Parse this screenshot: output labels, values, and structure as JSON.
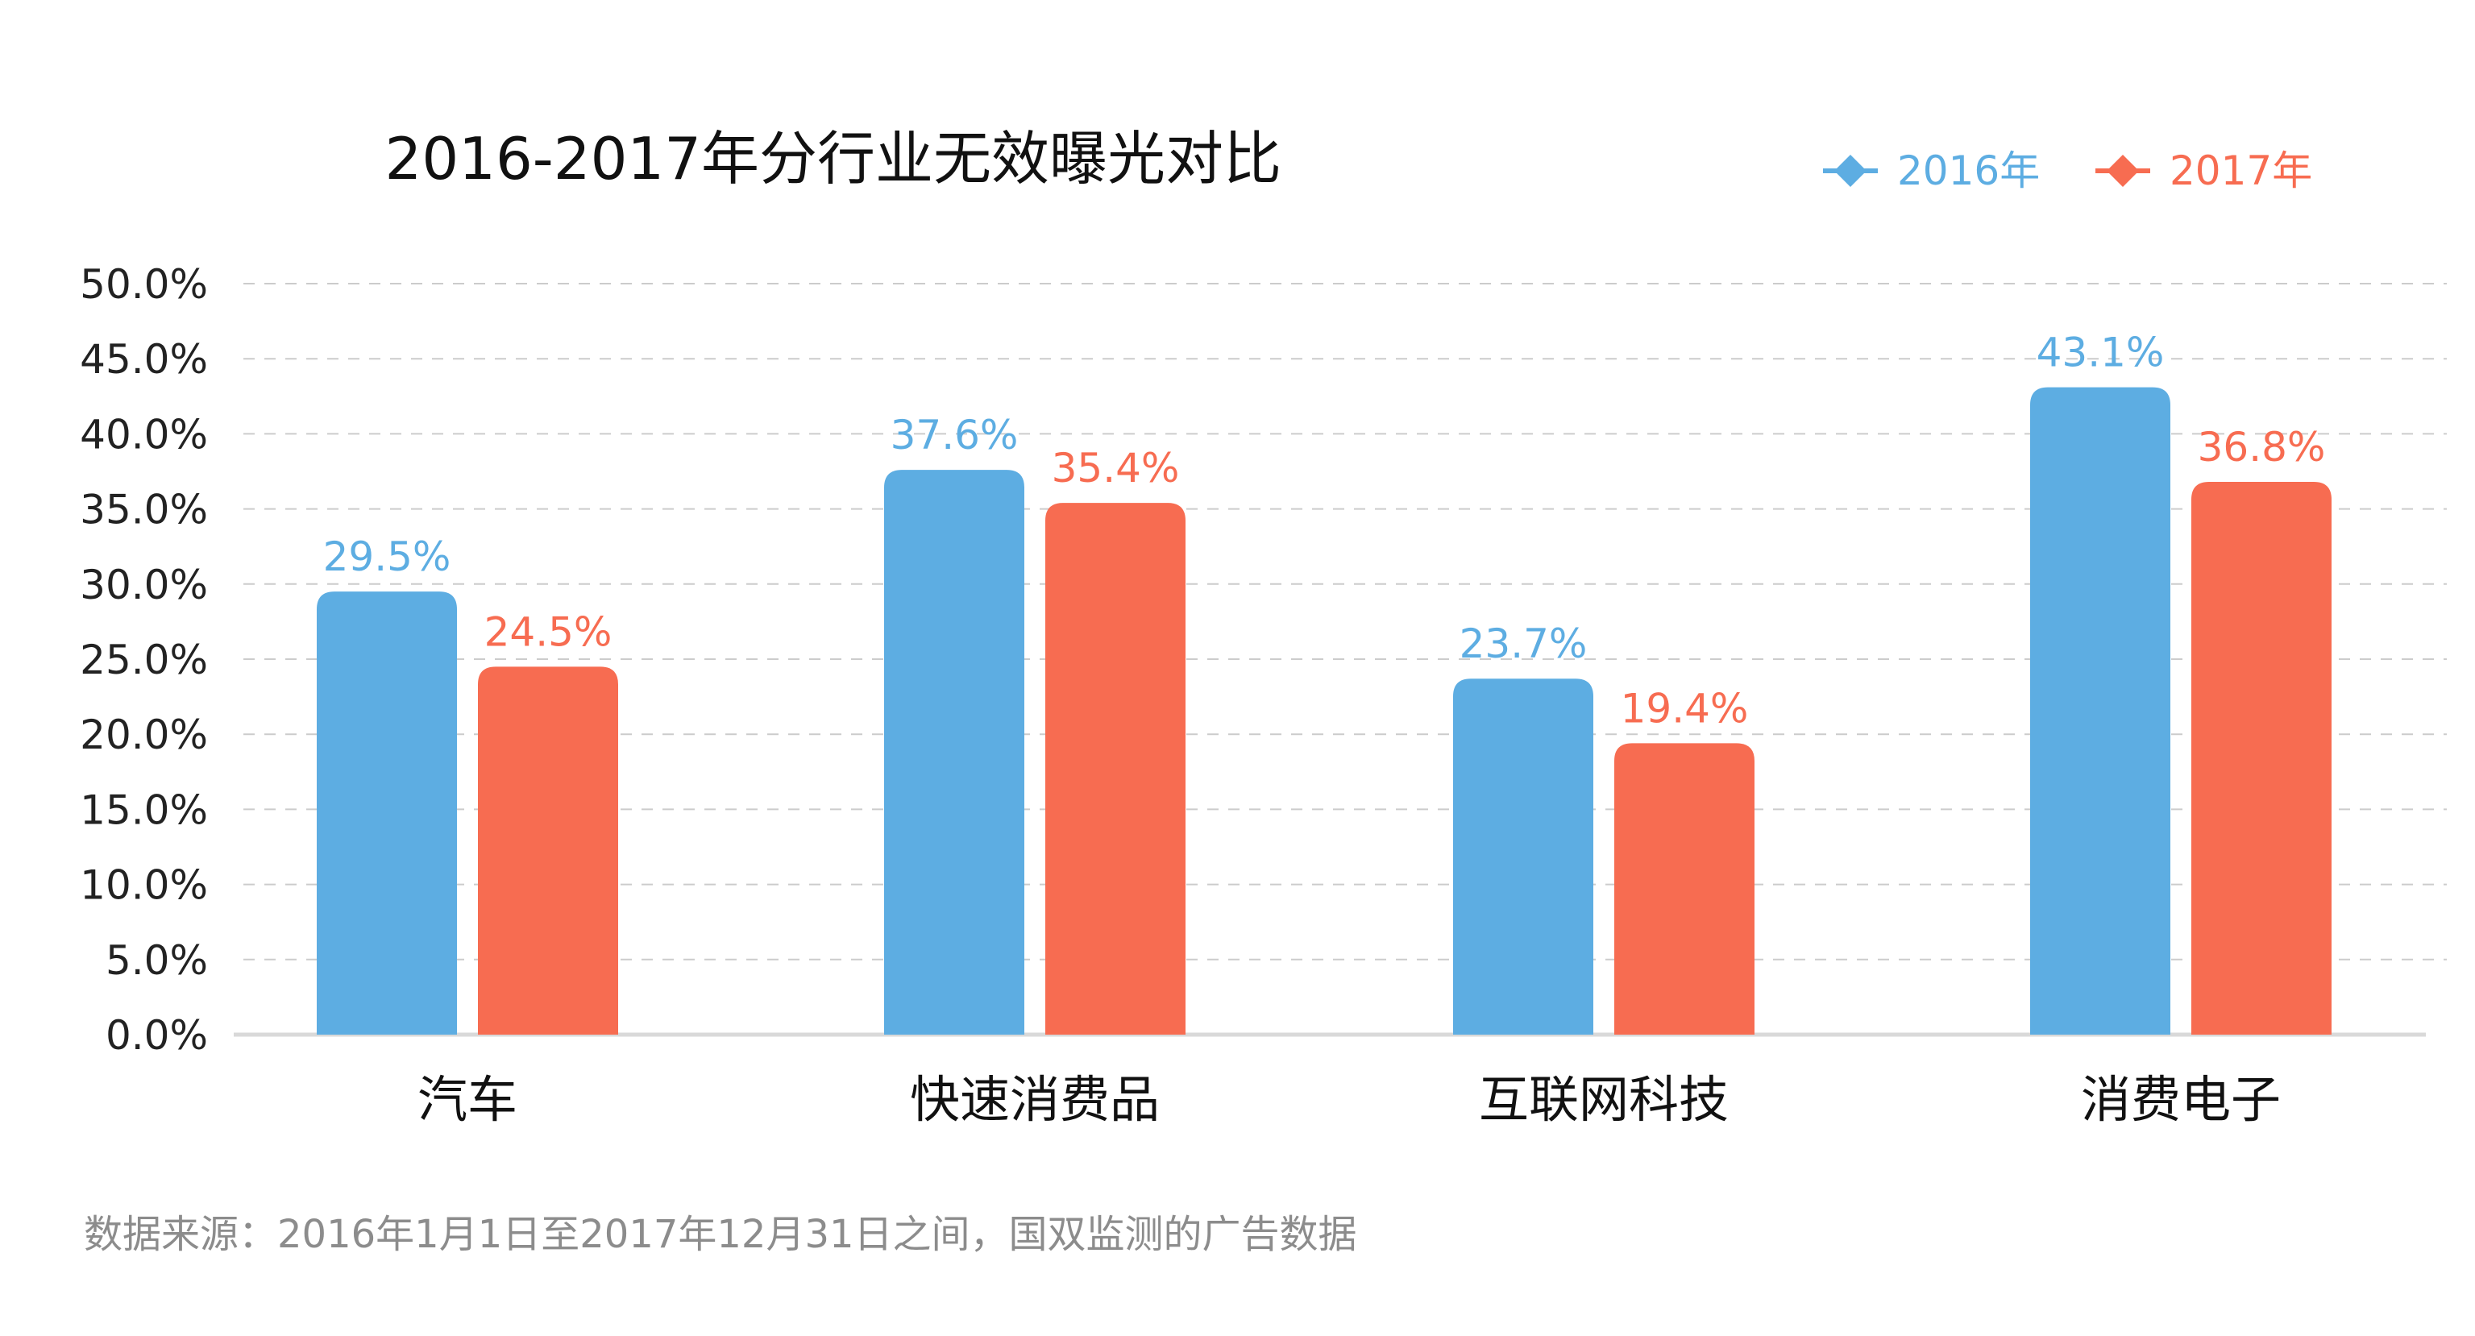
{
  "chart_data": {
    "type": "bar",
    "title": "2016-2017年分行业无效曝光对比",
    "categories": [
      "汽车",
      "快速消费品",
      "互联网科技",
      "消费电子"
    ],
    "series": [
      {
        "name": "2016年",
        "values": [
          29.5,
          37.6,
          23.7,
          43.1
        ],
        "labels": [
          "29.5%",
          "37.6%",
          "23.7%",
          "43.1%"
        ],
        "color": "#5DADE2"
      },
      {
        "name": "2017年",
        "values": [
          24.5,
          35.4,
          19.4,
          36.8
        ],
        "labels": [
          "24.5%",
          "35.4%",
          "19.4%",
          "36.8%"
        ],
        "color": "#F76C51"
      }
    ],
    "ylim": [
      0,
      50
    ],
    "yticks": [
      "0.0%",
      "5.0%",
      "10.0%",
      "15.0%",
      "20.0%",
      "25.0%",
      "30.0%",
      "35.0%",
      "40.0%",
      "45.0%",
      "50.0%"
    ],
    "xlabel": "",
    "ylabel": "",
    "grid": true,
    "legend_position": "top-right"
  },
  "footer": {
    "source": "数据来源：2016年1月1日至2017年12月31日之间，国双监测的广告数据"
  },
  "colors": {
    "grid": "#cccccc",
    "axis": "#d9d9d9",
    "footer": "#8c8c8c"
  }
}
